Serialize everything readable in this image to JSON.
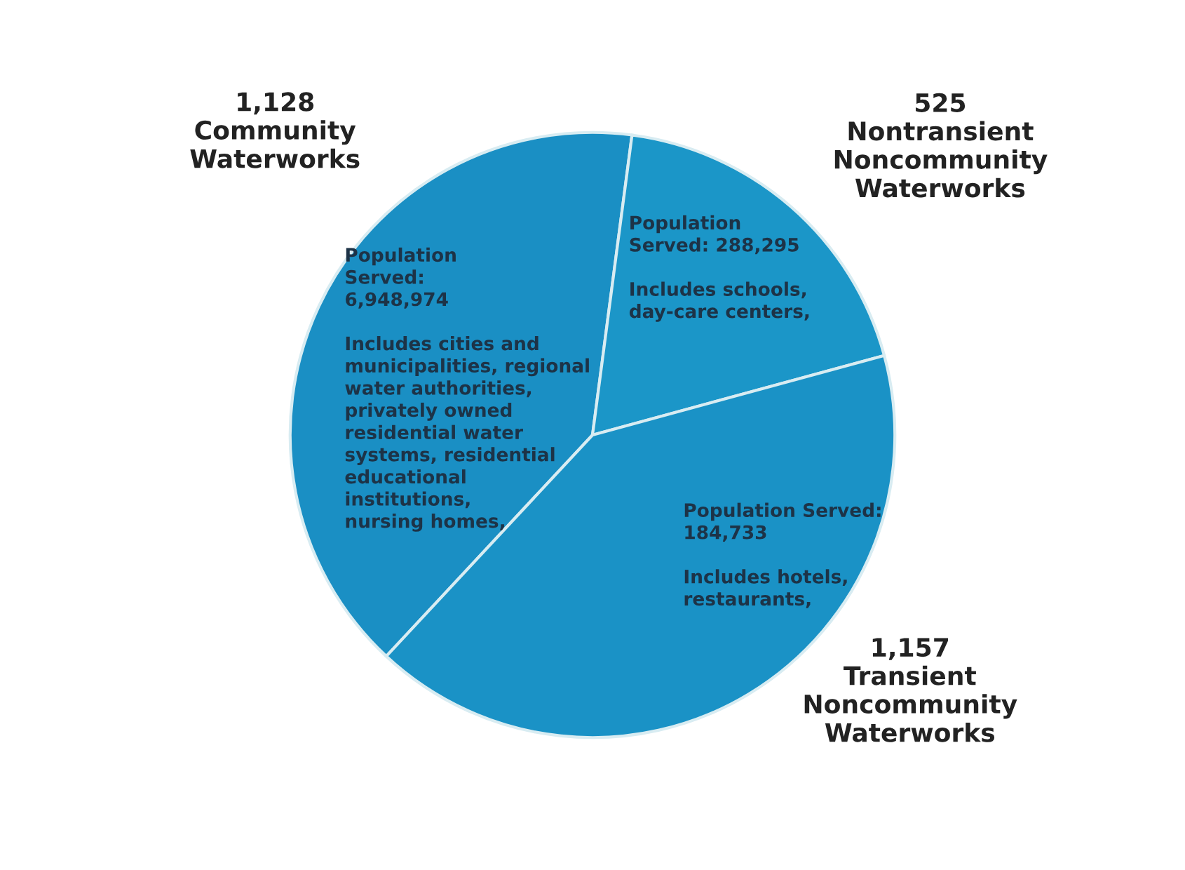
{
  "chart_data": {
    "type": "pie",
    "categories": [
      "Community Waterworks",
      "Nontransient Noncommunity Waterworks",
      "Transient Noncommunity Waterworks"
    ],
    "values": [
      1128,
      525,
      1157
    ],
    "value_labels": [
      "1,128",
      "525",
      "1,157"
    ],
    "colors": [
      "#1a8fc4",
      "#1b96c8",
      "#1a92c6"
    ],
    "annotations": [
      "Population\nServed:\n6,948,974\n\nIncludes cities and\nmunicipalities, regional\nwater authorities,\nprivately owned\nresidential water\nsystems, residential\neducational\ninstitutions,\nnursing homes,",
      "Population\nServed: 288,295\n\nIncludes schools,\nday-care centers,",
      "Population Served:\n184,733\n\nIncludes hotels,\nrestaurants,"
    ],
    "legend": false
  }
}
